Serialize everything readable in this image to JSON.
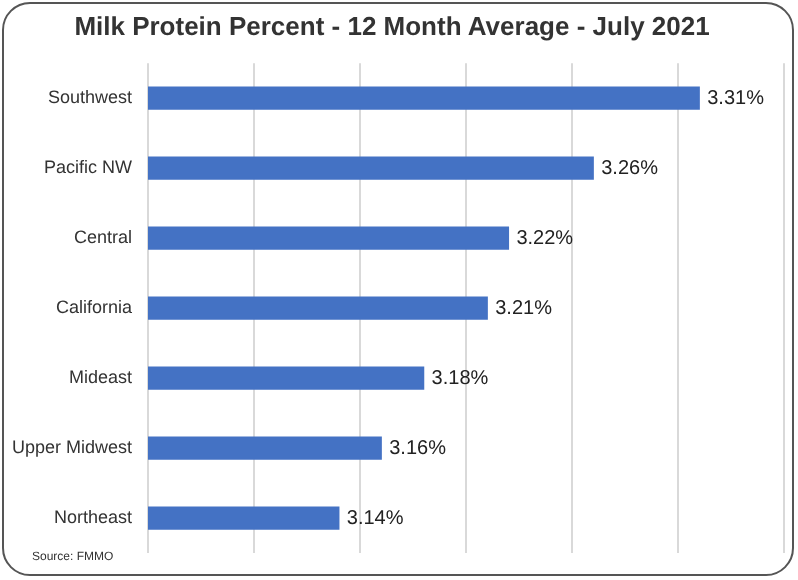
{
  "chart_data": {
    "type": "bar",
    "orientation": "horizontal",
    "title": "Milk Protein Percent - 12 Month Average - July 2021",
    "categories": [
      "Southwest",
      "Pacific NW",
      "Central",
      "California",
      "Mideast",
      "Upper Midwest",
      "Northeast"
    ],
    "values": [
      3.31,
      3.26,
      3.22,
      3.21,
      3.18,
      3.16,
      3.14
    ],
    "value_labels": [
      "3.31%",
      "3.26%",
      "3.22%",
      "3.21%",
      "3.18%",
      "3.16%",
      "3.14%"
    ],
    "color": "#4472c4",
    "xlim": [
      3.05,
      3.35
    ],
    "xticks": [
      {
        "value": 3.05,
        "label": null
      },
      {
        "value": 3.1,
        "label": null
      },
      {
        "value": 3.15,
        "label": null
      },
      {
        "value": 3.2,
        "label": null
      },
      {
        "value": 3.25,
        "label": null
      },
      {
        "value": 3.3,
        "label": null
      },
      {
        "value": 3.35,
        "label": null
      }
    ],
    "grid": "x",
    "tick_labels": "y",
    "legend": false,
    "annotations": [
      "Source: FMMO"
    ]
  }
}
